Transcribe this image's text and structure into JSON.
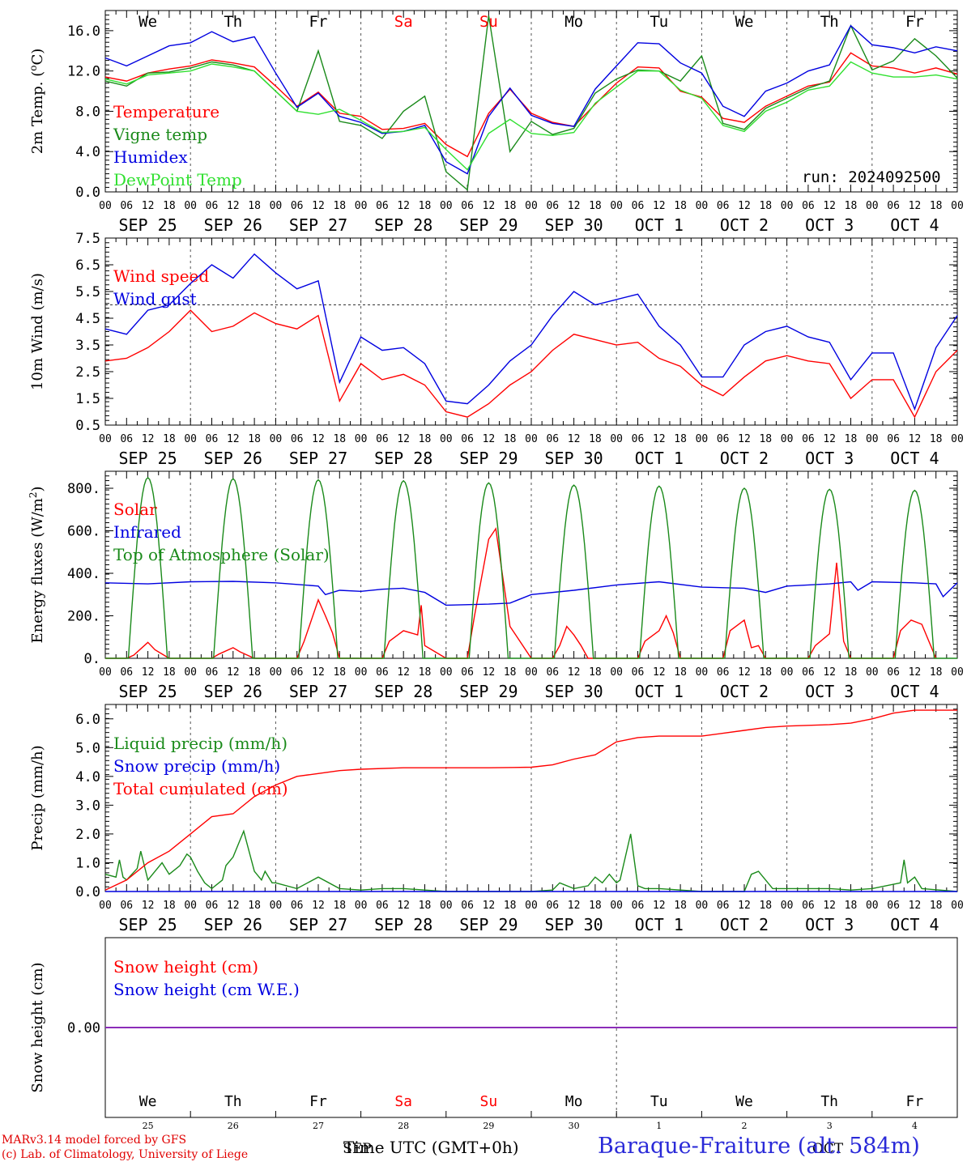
{
  "footer": {
    "credit_line1": "MARv3.14 model forced by GFS",
    "credit_line2": "(c) Lab. of Climatology, University of Liege",
    "station": "Baraque-Fraiture (alt. 584m)",
    "xlabel": "Time UTC (GMT+0h)",
    "sep_abbr": "SEP",
    "oct_abbr": "OCT"
  },
  "run": "run: 2024092500",
  "hour_ticks": [
    "00",
    "06",
    "12",
    "18"
  ],
  "weekdays": [
    "We",
    "Th",
    "Fr",
    "Sa",
    "Su",
    "Mo",
    "Tu",
    "We",
    "Th",
    "Fr"
  ],
  "weekend_days": [
    3,
    4
  ],
  "date_labels": [
    "SEP 25",
    "SEP 26",
    "SEP 27",
    "SEP 28",
    "SEP 29",
    "SEP 30",
    "OCT  1",
    "OCT  2",
    "OCT  3",
    "OCT  4"
  ],
  "day_numbers": [
    "25",
    "26",
    "27",
    "28",
    "29",
    "30",
    "1",
    "2",
    "3",
    "4"
  ],
  "colors": {
    "red": "#ff0000",
    "blue": "#0000e0",
    "green": "#1a8a1a",
    "lightgreen": "#30e030",
    "purple": "#8b2cb8",
    "weekend": "#ff0000"
  },
  "chart_data": [
    {
      "type": "line",
      "ylabel": "2m Temp. (oC)",
      "ylim": [
        0,
        18
      ],
      "yticks": [
        "0.0",
        "4.0",
        "8.0",
        "12.0",
        "16.0"
      ],
      "x_unit": "hours since SEP 25 00 UTC",
      "series": [
        {
          "name": "Temperature",
          "color": "red",
          "x": [
            0,
            6,
            12,
            18,
            24,
            30,
            36,
            42,
            48,
            54,
            60,
            66,
            72,
            78,
            84,
            90,
            96,
            102,
            108,
            114,
            120,
            126,
            132,
            138,
            144,
            150,
            156,
            162,
            168,
            174,
            180,
            186,
            192,
            198,
            204,
            210,
            216,
            222,
            228,
            234,
            240
          ],
          "y": [
            11.4,
            11.0,
            11.8,
            12.2,
            12.5,
            13.1,
            12.8,
            12.4,
            10.5,
            8.5,
            9.9,
            7.8,
            7.5,
            6.2,
            6.3,
            6.8,
            4.7,
            3.5,
            7.8,
            10.2,
            7.8,
            6.9,
            6.5,
            8.7,
            10.8,
            12.4,
            12.3,
            10.0,
            9.4,
            7.3,
            6.9,
            8.5,
            9.5,
            10.5,
            10.9,
            13.8,
            12.5,
            12.3,
            11.8,
            12.3,
            11.7
          ]
        },
        {
          "name": "Vigne temp",
          "color": "green",
          "x": [
            0,
            6,
            12,
            18,
            24,
            30,
            36,
            42,
            48,
            54,
            60,
            66,
            72,
            78,
            84,
            90,
            96,
            102,
            108,
            114,
            120,
            126,
            132,
            138,
            144,
            150,
            156,
            162,
            168,
            174,
            180,
            186,
            192,
            198,
            204,
            210,
            216,
            222,
            228,
            234,
            240
          ],
          "y": [
            11.0,
            10.5,
            11.8,
            11.9,
            12.3,
            12.9,
            12.6,
            12.0,
            10.0,
            8.0,
            14.0,
            7.0,
            6.6,
            5.3,
            8.0,
            9.5,
            2.0,
            0.2,
            17.5,
            4.0,
            7.0,
            5.7,
            6.3,
            9.8,
            11.2,
            12.1,
            12.0,
            11.0,
            13.5,
            6.8,
            6.2,
            8.3,
            9.3,
            10.3,
            11.0,
            16.5,
            12.1,
            13.0,
            15.2,
            13.5,
            11.3
          ]
        },
        {
          "name": "Humidex",
          "color": "blue",
          "x": [
            0,
            6,
            12,
            18,
            24,
            30,
            36,
            42,
            48,
            54,
            60,
            66,
            72,
            78,
            84,
            90,
            96,
            102,
            108,
            114,
            120,
            126,
            132,
            138,
            144,
            150,
            156,
            162,
            168,
            174,
            180,
            186,
            192,
            198,
            204,
            210,
            216,
            222,
            228,
            234,
            240
          ],
          "y": [
            13.3,
            12.5,
            13.5,
            14.5,
            14.8,
            15.9,
            14.9,
            15.4,
            11.8,
            8.4,
            9.8,
            7.5,
            6.9,
            5.8,
            6.0,
            6.6,
            3.0,
            1.8,
            7.5,
            10.3,
            7.6,
            6.8,
            6.5,
            10.2,
            12.5,
            14.8,
            14.7,
            12.8,
            11.8,
            8.5,
            7.5,
            10.0,
            10.8,
            12.0,
            12.6,
            16.5,
            14.6,
            14.3,
            13.8,
            14.4,
            14.0
          ]
        },
        {
          "name": "DewPoint Temp",
          "color": "lightgreen",
          "x": [
            0,
            6,
            12,
            18,
            24,
            30,
            36,
            42,
            48,
            54,
            60,
            66,
            72,
            78,
            84,
            90,
            96,
            102,
            108,
            114,
            120,
            126,
            132,
            138,
            144,
            150,
            156,
            162,
            168,
            174,
            180,
            186,
            192,
            198,
            204,
            210,
            216,
            222,
            228,
            234,
            240
          ],
          "y": [
            11.2,
            10.7,
            11.6,
            11.8,
            12.0,
            12.7,
            12.4,
            12.0,
            10.0,
            8.0,
            7.7,
            8.2,
            7.1,
            5.9,
            6.0,
            6.4,
            4.2,
            2.2,
            5.8,
            7.2,
            5.8,
            5.6,
            5.9,
            8.8,
            10.4,
            12.0,
            12.0,
            10.1,
            9.3,
            6.6,
            6.0,
            8.0,
            8.9,
            10.1,
            10.5,
            12.9,
            11.8,
            11.4,
            11.4,
            11.6,
            11.2
          ]
        }
      ]
    },
    {
      "type": "line",
      "ylabel": "10m Wind (m/s)",
      "ylim": [
        0.5,
        7.5
      ],
      "yticks": [
        "0.5",
        "1.5",
        "2.5",
        "3.5",
        "4.5",
        "5.5",
        "6.5",
        "7.5"
      ],
      "reference_line": 5.0,
      "x_unit": "hours since SEP 25 00 UTC",
      "series": [
        {
          "name": "Wind speed",
          "color": "red",
          "x": [
            0,
            6,
            12,
            18,
            24,
            30,
            36,
            42,
            48,
            54,
            60,
            66,
            72,
            78,
            84,
            90,
            96,
            102,
            108,
            114,
            120,
            126,
            132,
            138,
            144,
            150,
            156,
            162,
            168,
            174,
            180,
            186,
            192,
            198,
            204,
            210,
            216,
            222,
            228,
            234,
            240
          ],
          "y": [
            2.9,
            3.0,
            3.4,
            4.0,
            4.8,
            4.0,
            4.2,
            4.7,
            4.3,
            4.1,
            4.6,
            1.4,
            2.8,
            2.2,
            2.4,
            2.0,
            1.0,
            0.8,
            1.3,
            2.0,
            2.5,
            3.3,
            3.9,
            3.7,
            3.5,
            3.6,
            3.0,
            2.7,
            2.0,
            1.6,
            2.3,
            2.9,
            3.1,
            2.9,
            2.8,
            1.5,
            2.2,
            2.2,
            0.8,
            2.5,
            3.3
          ]
        },
        {
          "name": "Wind gust",
          "color": "blue",
          "x": [
            0,
            6,
            12,
            18,
            24,
            30,
            36,
            42,
            48,
            54,
            60,
            66,
            72,
            78,
            84,
            90,
            96,
            102,
            108,
            114,
            120,
            126,
            132,
            138,
            144,
            150,
            156,
            162,
            168,
            174,
            180,
            186,
            192,
            198,
            204,
            210,
            216,
            222,
            228,
            234,
            240
          ],
          "y": [
            4.1,
            3.9,
            4.8,
            5.0,
            5.8,
            6.5,
            6.0,
            6.9,
            6.2,
            5.6,
            5.9,
            2.1,
            3.8,
            3.3,
            3.4,
            2.8,
            1.4,
            1.3,
            2.0,
            2.9,
            3.5,
            4.6,
            5.5,
            5.0,
            5.2,
            5.4,
            4.2,
            3.5,
            2.3,
            2.3,
            3.5,
            4.0,
            4.2,
            3.8,
            3.6,
            2.2,
            3.2,
            3.2,
            1.1,
            3.4,
            4.6
          ]
        }
      ]
    },
    {
      "type": "line",
      "ylabel": "Energy fluxes (W/m2)",
      "ylim": [
        0,
        880
      ],
      "yticks": [
        "0.",
        "200.",
        "400.",
        "600.",
        "800."
      ],
      "x_unit": "hours since SEP 25 00 UTC",
      "series": [
        {
          "name": "Solar",
          "color": "red",
          "x": [
            0,
            6,
            8,
            11,
            12,
            14,
            18,
            24,
            30,
            32,
            36,
            38,
            42,
            48,
            54,
            56,
            60,
            62,
            64,
            66,
            72,
            78,
            80,
            84,
            88,
            89,
            90,
            96,
            102,
            104,
            108,
            110,
            112,
            114,
            120,
            126,
            128,
            130,
            132,
            134,
            136,
            144,
            150,
            152,
            156,
            158,
            160,
            162,
            168,
            174,
            176,
            180,
            182,
            184,
            186,
            192,
            198,
            200,
            204,
            206,
            208,
            210,
            216,
            222,
            224,
            227,
            230,
            234
          ],
          "y": [
            0,
            0,
            15,
            60,
            75,
            40,
            0,
            0,
            0,
            20,
            50,
            30,
            0,
            0,
            0,
            80,
            275,
            200,
            120,
            0,
            0,
            0,
            80,
            130,
            110,
            250,
            60,
            0,
            0,
            200,
            560,
            610,
            380,
            150,
            0,
            0,
            60,
            150,
            110,
            60,
            0,
            0,
            0,
            80,
            130,
            200,
            120,
            0,
            0,
            0,
            130,
            180,
            50,
            60,
            0,
            0,
            0,
            60,
            115,
            450,
            80,
            0,
            0,
            0,
            130,
            180,
            160,
            0
          ]
        },
        {
          "name": "Infrared",
          "color": "blue",
          "x": [
            0,
            12,
            24,
            36,
            48,
            60,
            62,
            66,
            72,
            78,
            84,
            90,
            96,
            108,
            114,
            120,
            132,
            144,
            156,
            168,
            180,
            186,
            192,
            204,
            210,
            212,
            216,
            228,
            234,
            236,
            240
          ],
          "y": [
            355,
            350,
            360,
            362,
            355,
            340,
            300,
            320,
            315,
            325,
            330,
            310,
            250,
            255,
            260,
            300,
            320,
            345,
            360,
            335,
            330,
            310,
            340,
            350,
            360,
            320,
            360,
            355,
            350,
            290,
            355
          ]
        },
        {
          "name": "Top of Atmosphere (Solar)",
          "color": "green",
          "sun_days": 10,
          "noon_peaks": [
            850,
            845,
            840,
            835,
            825,
            815,
            810,
            800,
            795,
            790
          ],
          "sunrise_hour": 6.5,
          "sunset_hour": 17.5
        }
      ]
    },
    {
      "type": "line",
      "ylabel": "Precip (mm/h)",
      "ylim": [
        0,
        6.5
      ],
      "yticks": [
        "0.0",
        "1.0",
        "2.0",
        "3.0",
        "4.0",
        "5.0",
        "6.0"
      ],
      "x_unit": "hours since SEP 25 00 UTC",
      "series": [
        {
          "name": "Liquid precip (mm/h)",
          "color": "green",
          "x": [
            0,
            3,
            4,
            5,
            6,
            9,
            10,
            11,
            12,
            14,
            16,
            18,
            21,
            23,
            24,
            26,
            28,
            30,
            33,
            34,
            36,
            39,
            42,
            44,
            45,
            47,
            48,
            54,
            60,
            66,
            72,
            78,
            84,
            90,
            96,
            108,
            120,
            126,
            128,
            132,
            136,
            138,
            140,
            142,
            144,
            145,
            148,
            150,
            152,
            156,
            168,
            180,
            182,
            184,
            188,
            192,
            204,
            210,
            216,
            224,
            225,
            226,
            228,
            230,
            240
          ],
          "y": [
            0.6,
            0.5,
            1.1,
            0.5,
            0.4,
            0.8,
            1.4,
            0.9,
            0.4,
            0.7,
            1.0,
            0.6,
            0.9,
            1.3,
            1.2,
            0.7,
            0.3,
            0.1,
            0.4,
            0.9,
            1.2,
            2.1,
            0.7,
            0.4,
            0.7,
            0.3,
            0.3,
            0.1,
            0.5,
            0.1,
            0.05,
            0.1,
            0.1,
            0.05,
            0.0,
            0.0,
            0.0,
            0.05,
            0.3,
            0.1,
            0.2,
            0.5,
            0.3,
            0.6,
            0.3,
            0.4,
            2.0,
            0.2,
            0.1,
            0.1,
            0.0,
            0.0,
            0.6,
            0.7,
            0.1,
            0.1,
            0.1,
            0.05,
            0.1,
            0.3,
            1.1,
            0.3,
            0.5,
            0.1,
            0.0
          ]
        },
        {
          "name": "Snow precip (mm/h)",
          "color": "blue",
          "x": [
            0,
            240
          ],
          "y": [
            0,
            0
          ]
        },
        {
          "name": "Total cumulated (cm)",
          "color": "red",
          "x": [
            0,
            6,
            12,
            18,
            24,
            30,
            36,
            42,
            48,
            54,
            60,
            66,
            72,
            84,
            96,
            108,
            120,
            126,
            132,
            138,
            144,
            150,
            156,
            168,
            180,
            186,
            192,
            204,
            210,
            216,
            222,
            228,
            234,
            240
          ],
          "y": [
            0.05,
            0.4,
            1.0,
            1.4,
            2.0,
            2.6,
            2.7,
            3.3,
            3.7,
            4.0,
            4.1,
            4.2,
            4.25,
            4.3,
            4.3,
            4.3,
            4.32,
            4.4,
            4.6,
            4.75,
            5.2,
            5.35,
            5.4,
            5.4,
            5.6,
            5.7,
            5.75,
            5.8,
            5.85,
            6.0,
            6.2,
            6.3,
            6.3,
            6.3
          ]
        }
      ]
    },
    {
      "type": "line",
      "ylabel": "Snow height (cm)",
      "yticks": [
        "0.00"
      ],
      "series": [
        {
          "name": "Snow height (cm)",
          "color": "red",
          "x": [
            0,
            240
          ],
          "y": [
            0,
            0
          ]
        },
        {
          "name": "Snow height (cm W.E.)",
          "color": "blue",
          "x": [
            0,
            240
          ],
          "y": [
            0,
            0
          ]
        }
      ]
    }
  ]
}
